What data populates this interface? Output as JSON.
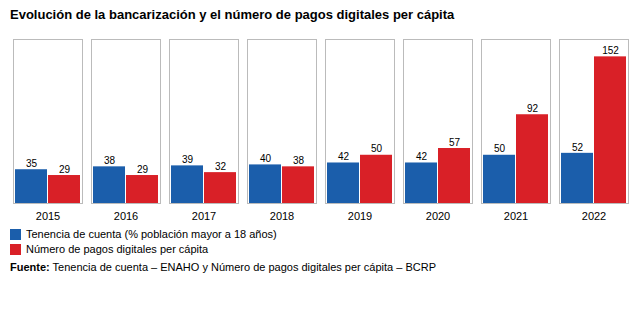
{
  "chart_data": {
    "type": "bar",
    "title": "Evolución de la bancarización y el número de pagos digitales per cápita",
    "categories": [
      "2015",
      "2016",
      "2017",
      "2018",
      "2019",
      "2020",
      "2021",
      "2022"
    ],
    "series": [
      {
        "name": "Tenencia de cuenta (% población mayor a 18 años)",
        "color": "#1b5eab",
        "values": [
          35,
          38,
          39,
          40,
          42,
          42,
          50,
          52
        ]
      },
      {
        "name": "Número de pagos digitales per cápita",
        "color": "#d92027",
        "values": [
          29,
          29,
          32,
          38,
          50,
          57,
          92,
          152
        ]
      }
    ],
    "ylim": [
      0,
      170
    ],
    "grid": false,
    "legend": "lower left",
    "data_labels": true,
    "tick_labels": "x",
    "caption": [
      "Fuente:",
      "Tenencia de cuenta – ENAHO y Número de pagos digitales per cápita – BCRP"
    ]
  }
}
